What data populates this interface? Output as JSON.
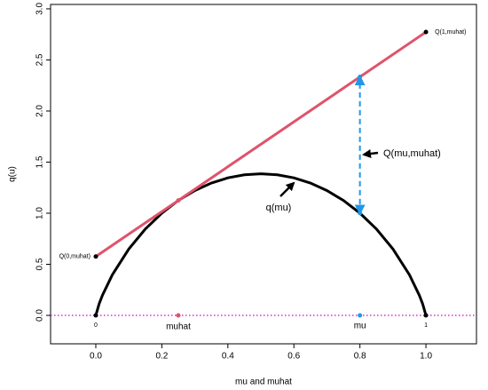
{
  "chart_data": {
    "type": "line",
    "xlabel": "mu and muhat",
    "ylabel": "q(u)",
    "xlim": [
      -0.137,
      1.153
    ],
    "ylim": [
      -0.278,
      3.043
    ],
    "xticks": [
      {
        "value": 0,
        "label": "0.0"
      },
      {
        "value": 0.2,
        "label": "0.2"
      },
      {
        "value": 0.4,
        "label": "0.4"
      },
      {
        "value": 0.6,
        "label": "0.6"
      },
      {
        "value": 0.8,
        "label": "0.8"
      },
      {
        "value": 1,
        "label": "1.0"
      }
    ],
    "yticks": [
      {
        "value": 0,
        "label": "0.0"
      },
      {
        "value": 0.5,
        "label": "0.5"
      },
      {
        "value": 1,
        "label": "1.0"
      },
      {
        "value": 1.5,
        "label": "1.5"
      },
      {
        "value": 2,
        "label": "2.0"
      },
      {
        "value": 2.5,
        "label": "2.5"
      },
      {
        "value": 3,
        "label": "3.0"
      }
    ],
    "series": [
      {
        "name": "q(mu)",
        "color": "#000000",
        "x": [
          0,
          0.01,
          0.02,
          0.05,
          0.1,
          0.15,
          0.2,
          0.25,
          0.3,
          0.35,
          0.4,
          0.45,
          0.5,
          0.55,
          0.6,
          0.65,
          0.7,
          0.75,
          0.8,
          0.85,
          0.9,
          0.95,
          0.98,
          0.99,
          1
        ],
        "values": [
          0,
          0.112,
          0.196,
          0.397,
          0.65,
          0.845,
          1.001,
          1.125,
          1.222,
          1.295,
          1.346,
          1.376,
          1.386,
          1.376,
          1.346,
          1.295,
          1.222,
          1.125,
          1.001,
          0.845,
          0.65,
          0.397,
          0.196,
          0.112,
          0
        ]
      },
      {
        "color": "#df536b",
        "x": [
          0,
          1
        ],
        "values": [
          0.576,
          2.773
        ]
      }
    ],
    "points": [
      {
        "x": 0,
        "y": 0,
        "color": "#000000",
        "label": "0"
      },
      {
        "x": 1,
        "y": 0,
        "color": "#000000",
        "label": "1"
      },
      {
        "x": 0,
        "y": 0.576,
        "color": "#000000",
        "label": "Q(0,muhat)"
      },
      {
        "x": 1,
        "y": 2.773,
        "color": "#000000",
        "label": "Q(1,muhat)"
      },
      {
        "x": 0.25,
        "y": 0,
        "color": "#df536b",
        "label": "muhat"
      },
      {
        "x": 0.8,
        "y": 0,
        "color": "#2297e6",
        "label": "mu"
      },
      {
        "x": 0.25,
        "y": 1.125,
        "color": "#df536b"
      },
      {
        "x": 0.8,
        "y": 1.001,
        "color": "#2297e6"
      },
      {
        "x": 0.8,
        "y": 2.334,
        "color": "#2297e6"
      }
    ],
    "baseline": {
      "value": 0,
      "color": "#cd0bbc"
    },
    "annotations": [
      "q(mu)",
      "Q(mu,muhat)"
    ]
  }
}
